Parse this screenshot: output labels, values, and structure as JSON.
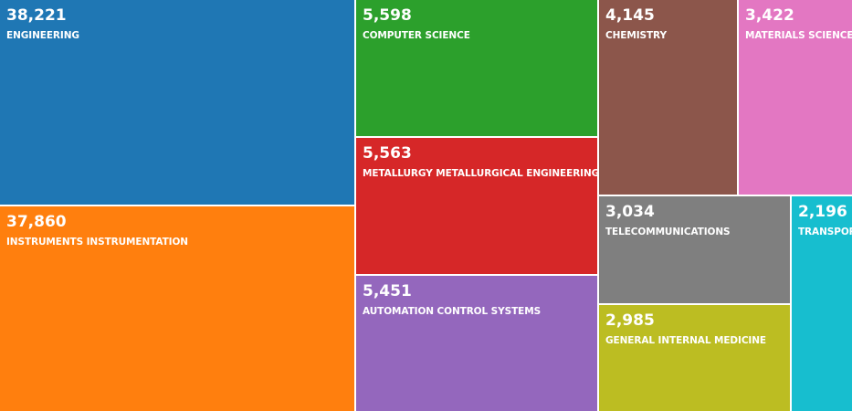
{
  "chart_data": {
    "type": "treemap",
    "items": [
      {
        "name": "ENGINEERING",
        "label": "38,221",
        "value": 38221,
        "color": "#1f77b4"
      },
      {
        "name": "INSTRUMENTS INSTRUMENTATION",
        "label": "37,860",
        "value": 37860,
        "color": "#ff7f0e"
      },
      {
        "name": "COMPUTER SCIENCE",
        "label": "5,598",
        "value": 5598,
        "color": "#2ca02c"
      },
      {
        "name": "METALLURGY METALLURGICAL ENGINEERING",
        "label": "5,563",
        "value": 5563,
        "color": "#d62728"
      },
      {
        "name": "AUTOMATION CONTROL SYSTEMS",
        "label": "5,451",
        "value": 5451,
        "color": "#9467bd"
      },
      {
        "name": "CHEMISTRY",
        "label": "4,145",
        "value": 4145,
        "color": "#8c564b"
      },
      {
        "name": "MATERIALS SCIENCE",
        "label": "3,422",
        "value": 3422,
        "color": "#e377c2"
      },
      {
        "name": "TELECOMMUNICATIONS",
        "label": "3,034",
        "value": 3034,
        "color": "#7f7f7f"
      },
      {
        "name": "GENERAL INTERNAL MEDICINE",
        "label": "2,985",
        "value": 2985,
        "color": "#bcbd22"
      },
      {
        "name": "TRANSPOR",
        "label": "2,196",
        "value": 2196,
        "color": "#17becf"
      }
    ]
  }
}
